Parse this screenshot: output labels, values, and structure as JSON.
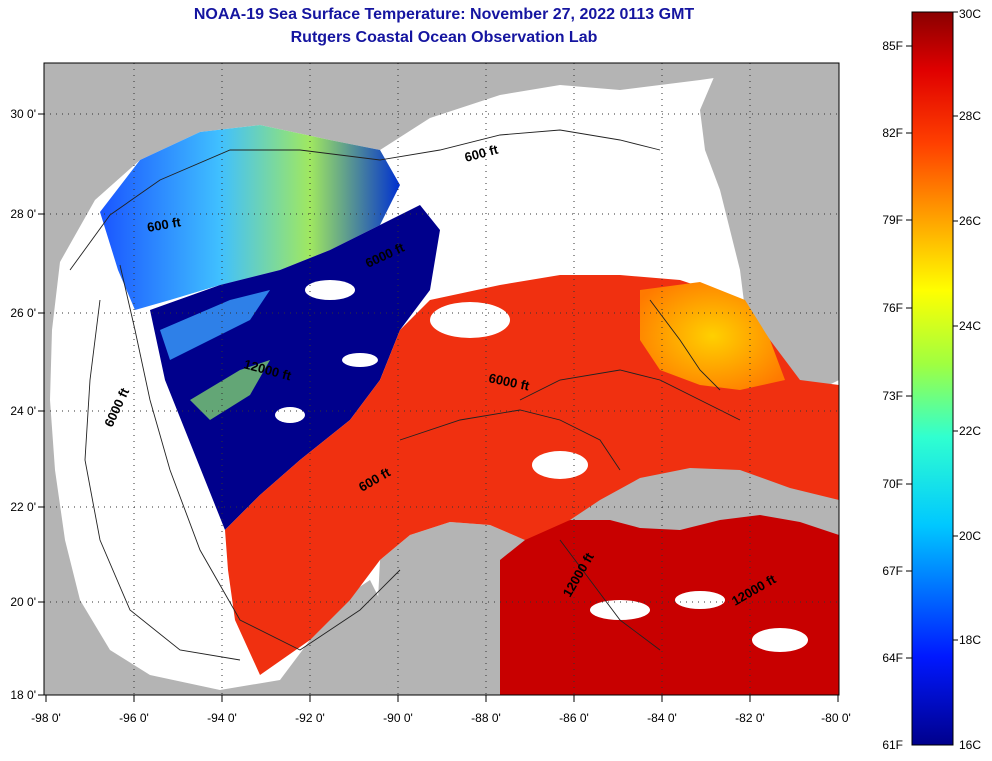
{
  "title": {
    "line1": "NOAA-19 Sea Surface Temperature:  November 27, 2022 0113 GMT",
    "line2": "Rutgers Coastal Ocean Observation Lab"
  },
  "map": {
    "lon_ticks": [
      "-98 0'",
      "-96 0'",
      "-94 0'",
      "-92 0'",
      "-90 0'",
      "-88 0'",
      "-86 0'",
      "-84 0'",
      "-82 0'",
      "-80 0'"
    ],
    "lat_ticks": [
      "18 0'",
      "20 0'",
      "22 0'",
      "24 0'",
      "26 0'",
      "28 0'",
      "30 0'"
    ],
    "contour_labels": [
      "600 ft",
      "600 ft",
      "6000 ft",
      "12000 ft",
      "6000 ft",
      "6000 ft",
      "600 ft",
      "12000 ft",
      "12000 ft"
    ]
  },
  "colorbar": {
    "fahrenheit": [
      "85F",
      "82F",
      "79F",
      "76F",
      "73F",
      "70F",
      "67F",
      "64F",
      "61F"
    ],
    "celsius": [
      "30C",
      "28C",
      "26C",
      "24C",
      "22C",
      "20C",
      "18C",
      "16C"
    ]
  },
  "colors": {
    "title": "#1515a0",
    "land": "#b4b4b4",
    "cloud": "#ffffff",
    "cold": "#00008c",
    "warm": "#f03010"
  }
}
